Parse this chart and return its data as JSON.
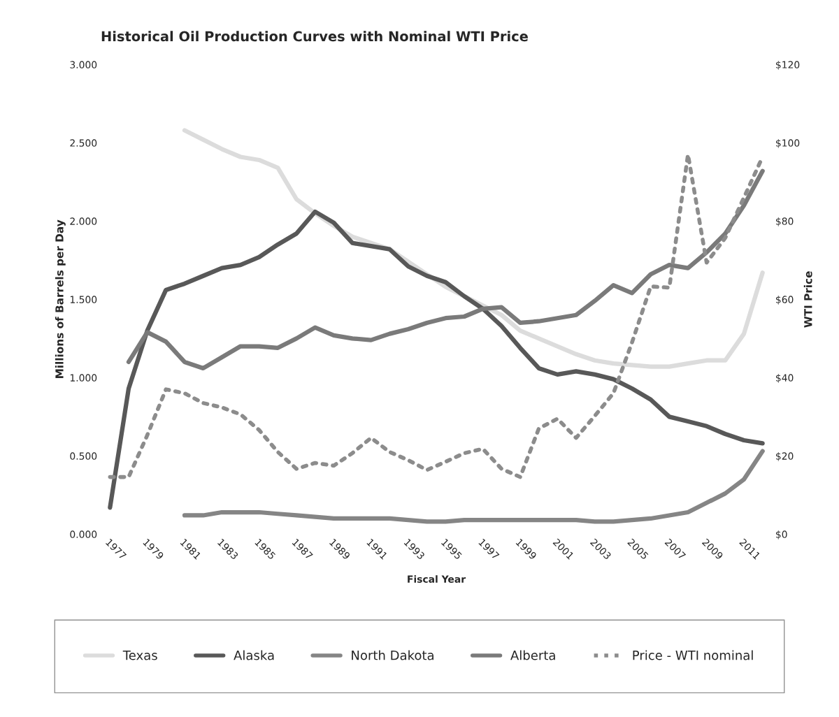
{
  "chart_data": {
    "type": "line",
    "title": "Historical Oil Production Curves with Nominal WTI Price",
    "xlabel": "Fiscal Year",
    "ylabel": "Millions of Barrels per Day",
    "y2label": "WTI Price",
    "categories": [
      "1977",
      null,
      "1979",
      null,
      "1981",
      null,
      "1983",
      null,
      "1985",
      null,
      "1987",
      null,
      "1989",
      null,
      "1991",
      null,
      "1993",
      null,
      "1995",
      null,
      "1997",
      null,
      "1999",
      null,
      "2001",
      null,
      "2003",
      null,
      "2005",
      null,
      "2007",
      null,
      "2009",
      null,
      "2011",
      null
    ],
    "series": [
      {
        "name": "Texas",
        "color": "#dcdcdc",
        "values": [
          null,
          null,
          null,
          null,
          2.58,
          2.52,
          2.46,
          2.41,
          2.39,
          2.34,
          2.14,
          2.05,
          1.97,
          1.9,
          1.86,
          1.82,
          1.74,
          1.66,
          1.58,
          1.52,
          1.46,
          1.4,
          1.3,
          1.25,
          1.2,
          1.15,
          1.11,
          1.09,
          1.08,
          1.07,
          1.07,
          1.09,
          1.11,
          1.11,
          1.28,
          1.67
        ]
      },
      {
        "name": "Alaska",
        "color": "#585858",
        "values": [
          0.17,
          0.93,
          1.3,
          1.56,
          1.6,
          1.65,
          1.7,
          1.72,
          1.77,
          1.85,
          1.92,
          2.06,
          1.99,
          1.86,
          1.84,
          1.82,
          1.71,
          1.65,
          1.61,
          1.52,
          1.44,
          1.33,
          1.19,
          1.06,
          1.02,
          1.04,
          1.02,
          0.99,
          0.93,
          0.86,
          0.75,
          0.72,
          0.69,
          0.64,
          0.6,
          0.58
        ]
      },
      {
        "name": "North Dakota",
        "color": "#858585",
        "values": [
          null,
          null,
          null,
          null,
          0.12,
          0.12,
          0.14,
          0.14,
          0.14,
          0.13,
          0.12,
          0.11,
          0.1,
          0.1,
          0.1,
          0.1,
          0.09,
          0.08,
          0.08,
          0.09,
          0.09,
          0.09,
          0.09,
          0.09,
          0.09,
          0.09,
          0.08,
          0.08,
          0.09,
          0.1,
          0.12,
          0.14,
          0.2,
          0.26,
          0.35,
          0.53
        ]
      },
      {
        "name": "Alberta",
        "color": "#7a7a7a",
        "values": [
          null,
          1.1,
          1.29,
          1.23,
          1.1,
          1.06,
          1.13,
          1.2,
          1.2,
          1.19,
          1.25,
          1.32,
          1.27,
          1.25,
          1.24,
          1.28,
          1.31,
          1.35,
          1.38,
          1.39,
          1.44,
          1.45,
          1.35,
          1.36,
          1.38,
          1.4,
          1.49,
          1.59,
          1.54,
          1.66,
          1.72,
          1.7,
          1.8,
          1.92,
          2.1,
          2.32
        ]
      },
      {
        "name": "Price - WTI nominal",
        "color": "#8c8c8c",
        "axis": "y2",
        "line_style": "dotted",
        "values": [
          14.6,
          14.6,
          25.3,
          37,
          36,
          33.5,
          32.4,
          30.6,
          26.6,
          21,
          16.7,
          18.2,
          17.5,
          20.7,
          24.6,
          21,
          18.9,
          16.4,
          18.5,
          20.7,
          21.8,
          16.7,
          14.6,
          27,
          29.5,
          24.6,
          30.2,
          36,
          49,
          63.3,
          63,
          97,
          69.4,
          75.7,
          86,
          96.4
        ]
      }
    ],
    "ylim": [
      0,
      3
    ],
    "yticks": [
      {
        "value": 0,
        "label": "0.000"
      },
      {
        "value": 0.5,
        "label": "0.500"
      },
      {
        "value": 1,
        "label": "1.000"
      },
      {
        "value": 1.5,
        "label": "1.500"
      },
      {
        "value": 2,
        "label": "2.000"
      },
      {
        "value": 2.5,
        "label": "2.500"
      },
      {
        "value": 3,
        "label": "3.000"
      }
    ],
    "y2lim": [
      0,
      120
    ],
    "y2ticks": [
      {
        "value": 0,
        "label": "$0"
      },
      {
        "value": 20,
        "label": "$20"
      },
      {
        "value": 40,
        "label": "$40"
      },
      {
        "value": 60,
        "label": "$60"
      },
      {
        "value": 80,
        "label": "$80"
      },
      {
        "value": 100,
        "label": "$100"
      },
      {
        "value": 120,
        "label": "$120"
      }
    ],
    "grid": false,
    "legend": "bottom"
  }
}
